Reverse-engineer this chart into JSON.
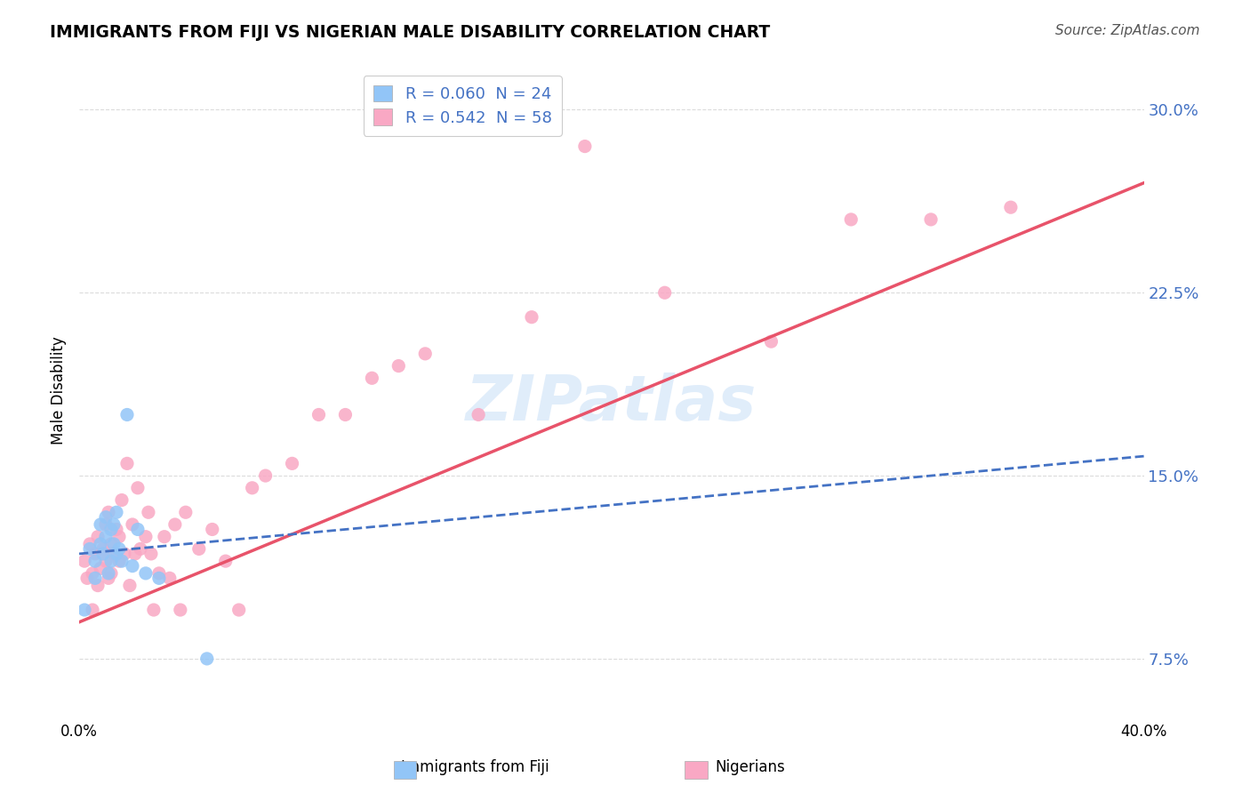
{
  "title": "IMMIGRANTS FROM FIJI VS NIGERIAN MALE DISABILITY CORRELATION CHART",
  "source": "Source: ZipAtlas.com",
  "ylabel": "Male Disability",
  "x_min": 0.0,
  "x_max": 0.4,
  "y_min": 0.05,
  "y_max": 0.32,
  "y_ticks": [
    0.075,
    0.15,
    0.225,
    0.3
  ],
  "y_tick_labels": [
    "7.5%",
    "15.0%",
    "22.5%",
    "30.0%"
  ],
  "x_ticks": [
    0.0,
    0.1,
    0.2,
    0.3,
    0.4
  ],
  "x_tick_labels": [
    "0.0%",
    "",
    "",
    "",
    "40.0%"
  ],
  "watermark": "ZIPatlas",
  "legend_label_fiji": "R = 0.060  N = 24",
  "legend_label_nigeria": "R = 0.542  N = 58",
  "fiji_color": "#92C5F7",
  "nigeria_color": "#F9A8C4",
  "fiji_line_color": "#4472C4",
  "nigeria_line_color": "#E8536A",
  "fiji_x": [
    0.002,
    0.004,
    0.006,
    0.006,
    0.008,
    0.008,
    0.009,
    0.01,
    0.01,
    0.011,
    0.012,
    0.012,
    0.013,
    0.013,
    0.014,
    0.014,
    0.015,
    0.016,
    0.018,
    0.02,
    0.022,
    0.025,
    0.03,
    0.048
  ],
  "fiji_y": [
    0.095,
    0.12,
    0.108,
    0.115,
    0.122,
    0.13,
    0.118,
    0.125,
    0.133,
    0.11,
    0.128,
    0.115,
    0.122,
    0.13,
    0.118,
    0.135,
    0.12,
    0.115,
    0.175,
    0.113,
    0.128,
    0.11,
    0.108,
    0.075
  ],
  "nigeria_x": [
    0.002,
    0.003,
    0.004,
    0.005,
    0.005,
    0.006,
    0.007,
    0.007,
    0.008,
    0.009,
    0.01,
    0.01,
    0.011,
    0.011,
    0.012,
    0.012,
    0.013,
    0.014,
    0.015,
    0.015,
    0.016,
    0.017,
    0.018,
    0.019,
    0.02,
    0.021,
    0.022,
    0.023,
    0.025,
    0.026,
    0.027,
    0.028,
    0.03,
    0.032,
    0.034,
    0.036,
    0.038,
    0.04,
    0.045,
    0.05,
    0.055,
    0.06,
    0.065,
    0.07,
    0.08,
    0.09,
    0.1,
    0.11,
    0.12,
    0.13,
    0.15,
    0.17,
    0.19,
    0.22,
    0.26,
    0.29,
    0.32,
    0.35
  ],
  "nigeria_y": [
    0.115,
    0.108,
    0.122,
    0.095,
    0.11,
    0.118,
    0.105,
    0.125,
    0.112,
    0.12,
    0.13,
    0.115,
    0.108,
    0.135,
    0.122,
    0.11,
    0.118,
    0.128,
    0.115,
    0.125,
    0.14,
    0.118,
    0.155,
    0.105,
    0.13,
    0.118,
    0.145,
    0.12,
    0.125,
    0.135,
    0.118,
    0.095,
    0.11,
    0.125,
    0.108,
    0.13,
    0.095,
    0.135,
    0.12,
    0.128,
    0.115,
    0.095,
    0.145,
    0.15,
    0.155,
    0.175,
    0.175,
    0.19,
    0.195,
    0.2,
    0.175,
    0.215,
    0.285,
    0.225,
    0.205,
    0.255,
    0.255,
    0.26
  ],
  "fiji_trend_x": [
    0.0,
    0.4
  ],
  "fiji_trend_y": [
    0.118,
    0.158
  ],
  "nigeria_trend_x": [
    0.0,
    0.4
  ],
  "nigeria_trend_y": [
    0.09,
    0.27
  ],
  "background_color": "#FFFFFF",
  "grid_color": "#CCCCCC"
}
